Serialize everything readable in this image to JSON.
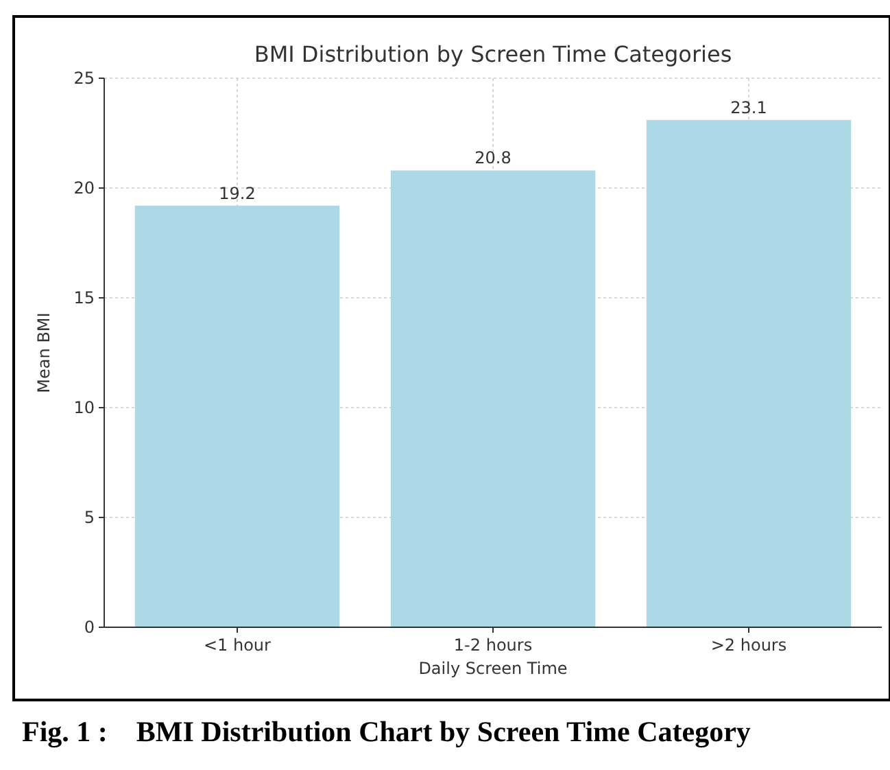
{
  "chart_data": {
    "type": "bar",
    "title": "BMI Distribution by Screen Time Categories",
    "xlabel": "Daily Screen Time",
    "ylabel": "Mean BMI",
    "categories": [
      "<1 hour",
      "1-2 hours",
      ">2 hours"
    ],
    "values": [
      19.2,
      20.8,
      23.1
    ],
    "color": "#add8e6",
    "data_labels": true,
    "ylim": [
      0,
      25
    ],
    "yticks": [
      0,
      5,
      10,
      15,
      20,
      25
    ],
    "grid": true,
    "annotations": [
      "Fig. 1 :    BMI Distribution Chart by Screen Time Category"
    ]
  }
}
